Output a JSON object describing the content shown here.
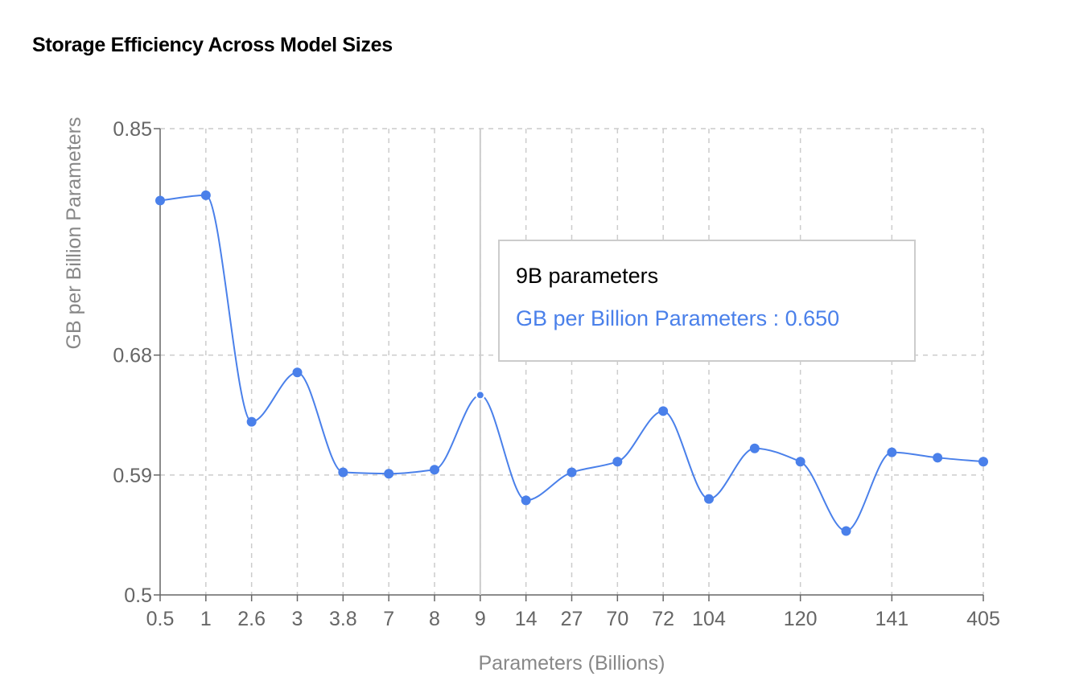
{
  "title": "Storage Efficiency Across Model Sizes",
  "chart_data": {
    "type": "line",
    "title": "Storage Efficiency Across Model Sizes",
    "xlabel": "Parameters (Billions)",
    "ylabel": "GB per Billion Parameters",
    "categories": [
      "0.5",
      "1",
      "2.6",
      "3",
      "3.8",
      "7",
      "8",
      "9",
      "14",
      "27",
      "70",
      "72",
      "104",
      "",
      "120",
      "",
      "141",
      "",
      "405"
    ],
    "series": [
      {
        "name": "GB per Billion Parameters",
        "values": [
          0.796,
          0.8,
          0.63,
          0.667,
          0.592,
          0.591,
          0.594,
          0.65,
          0.571,
          0.592,
          0.6,
          0.638,
          0.572,
          0.61,
          0.6,
          0.548,
          0.607,
          0.603,
          0.6
        ],
        "color": "#4a80ea"
      }
    ],
    "ylim": [
      0.5,
      0.85
    ],
    "yticks": [
      "0.5",
      "0.59",
      "0.68",
      "0.85"
    ],
    "grid": true,
    "smooth": true
  },
  "tooltip": {
    "title": "9B parameters",
    "value_text": "GB per Billion Parameters : 0.650",
    "active_category": "9"
  }
}
